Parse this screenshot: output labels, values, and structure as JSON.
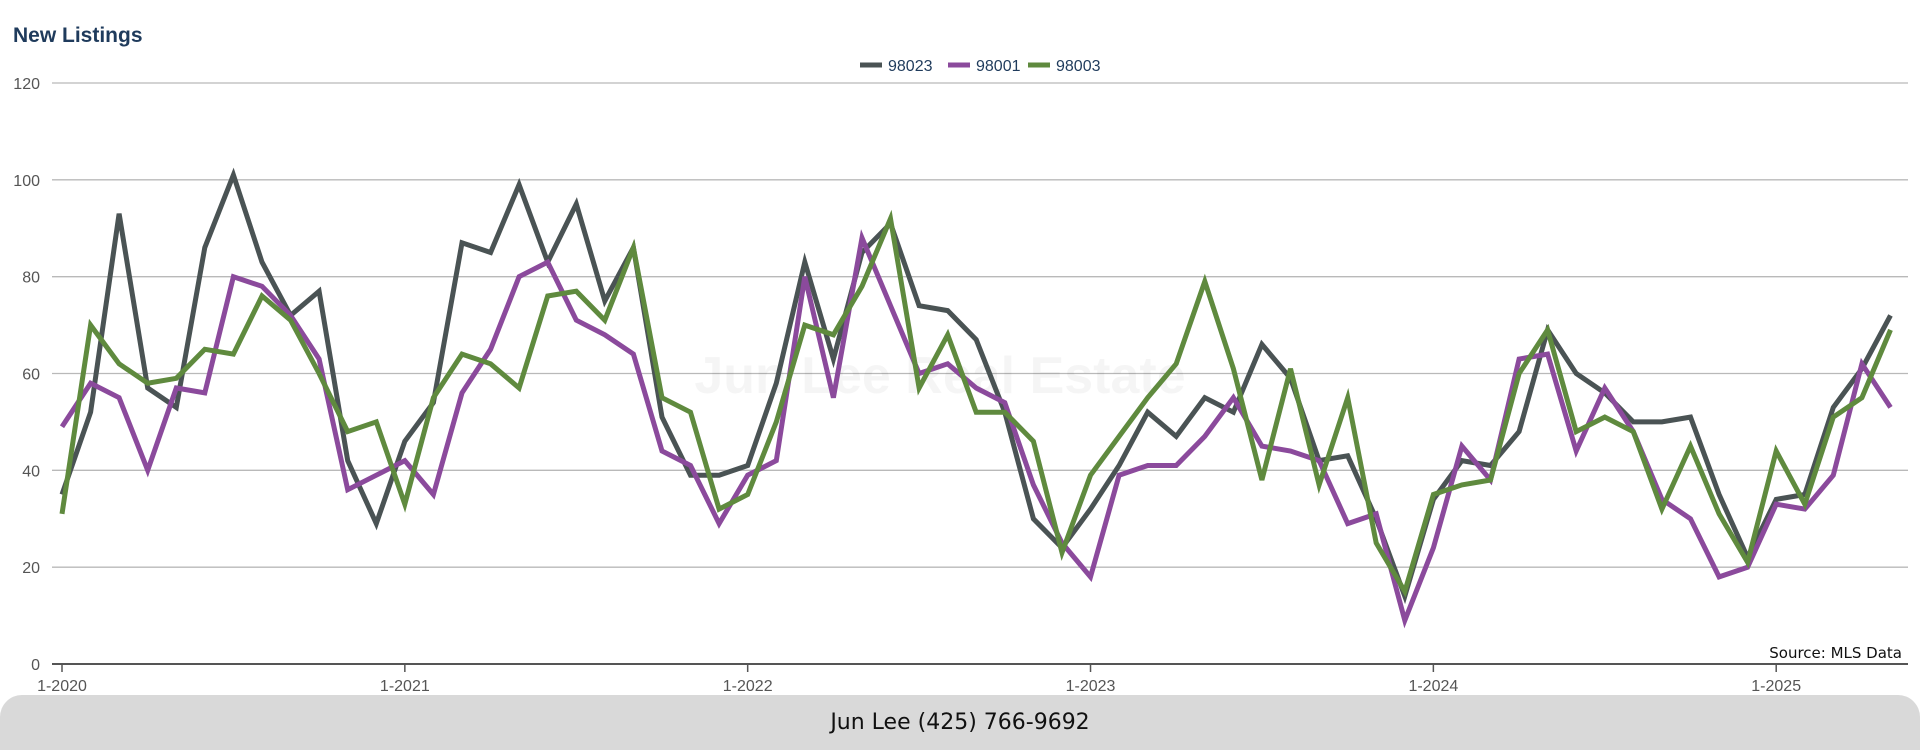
{
  "title": "New Listings",
  "footer": "Jun Lee (425) 766-9692",
  "watermark": "Jun Lee Real Estate",
  "chart_data": {
    "type": "line",
    "title": "New Listings",
    "source": "Source: MLS Data",
    "ylim": [
      0,
      120
    ],
    "yticks": [
      0,
      20,
      40,
      60,
      80,
      100,
      120
    ],
    "xticks": [
      "1-2020",
      "1-2021",
      "1-2022",
      "1-2023",
      "1-2024",
      "1-2025"
    ],
    "grid": true,
    "legend": "top-center",
    "x_start": "1-2020",
    "x_end": "5-2025",
    "series": [
      {
        "name": "98023",
        "color": "#4a5354",
        "values": [
          35,
          52,
          93,
          57,
          53,
          86,
          101,
          83,
          72,
          77,
          42,
          29,
          46,
          54,
          87,
          85,
          99,
          83,
          95,
          75,
          86,
          51,
          39,
          39,
          41,
          58,
          83,
          63,
          85,
          91,
          74,
          73,
          67,
          52,
          30,
          24,
          32,
          41,
          52,
          47,
          55,
          52,
          66,
          59,
          42,
          43,
          30,
          14,
          34,
          42,
          41,
          48,
          69,
          60,
          56,
          50,
          50,
          51,
          35,
          22,
          34,
          35,
          53,
          61,
          72
        ]
      },
      {
        "name": "98001",
        "color": "#8b4a9c",
        "values": [
          49,
          58,
          55,
          40,
          57,
          56,
          80,
          78,
          72,
          63,
          36,
          39,
          42,
          35,
          56,
          65,
          80,
          83,
          71,
          68,
          64,
          44,
          41,
          29,
          39,
          42,
          80,
          55,
          88,
          74,
          60,
          62,
          57,
          54,
          37,
          25,
          18,
          39,
          41,
          41,
          47,
          55,
          45,
          44,
          42,
          29,
          31,
          9,
          24,
          45,
          38,
          63,
          64,
          44,
          57,
          48,
          34,
          30,
          18,
          20,
          33,
          32,
          39,
          62,
          53
        ]
      },
      {
        "name": "98003",
        "color": "#5f8a3e",
        "values": [
          31,
          70,
          62,
          58,
          59,
          65,
          64,
          76,
          71,
          60,
          48,
          50,
          33,
          55,
          64,
          62,
          57,
          76,
          77,
          71,
          86,
          55,
          52,
          32,
          35,
          50,
          70,
          68,
          78,
          92,
          57,
          68,
          52,
          52,
          46,
          23,
          39,
          47,
          55,
          62,
          79,
          61,
          38,
          61,
          37,
          55,
          25,
          15,
          35,
          37,
          38,
          60,
          69,
          48,
          51,
          48,
          32,
          45,
          31,
          21,
          44,
          33,
          51,
          55,
          69
        ]
      }
    ]
  }
}
